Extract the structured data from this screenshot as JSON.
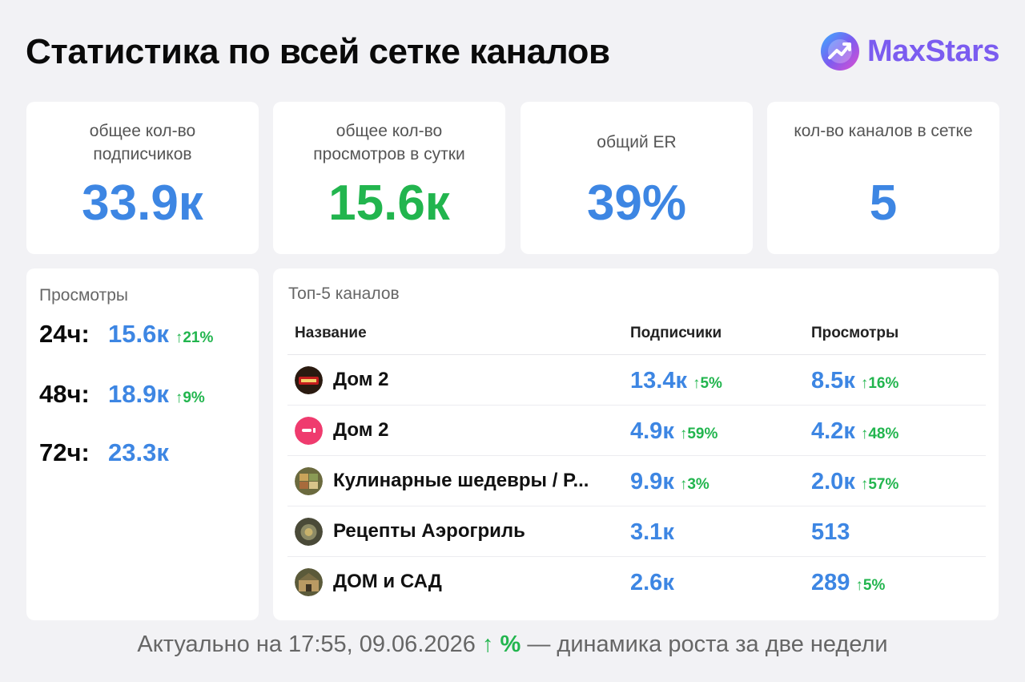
{
  "header": {
    "title": "Статистика по всей сетке каналов"
  },
  "brand": {
    "name": "MaxStars",
    "logo_icon": "trend-arrow-logo-icon",
    "color": "#7b5cf0"
  },
  "stats": [
    {
      "label": "общее кол-во подписчиков",
      "value": "33.9к",
      "color": "#3d86e3"
    },
    {
      "label": "общее кол-во просмотров в сутки",
      "value": "15.6к",
      "color": "#22b54e"
    },
    {
      "label": "общий ER",
      "value": "39%",
      "color": "#3d86e3"
    },
    {
      "label": "кол-во каналов в сетке",
      "value": "5",
      "color": "#3d86e3"
    }
  ],
  "views": {
    "title": "Просмотры",
    "rows": [
      {
        "period": "24ч:",
        "value": "15.6к",
        "delta": "↑21%"
      },
      {
        "period": "48ч:",
        "value": "18.9к",
        "delta": "↑9%"
      },
      {
        "period": "72ч:",
        "value": "23.3к",
        "delta": ""
      }
    ]
  },
  "top": {
    "title": "Топ-5 каналов",
    "columns": {
      "name": "Название",
      "subscribers": "Подписчики",
      "views": "Просмотры"
    },
    "rows": [
      {
        "name": "Дом 2",
        "avatar": "kupidon-avatar-icon",
        "subs": "13.4к",
        "subs_delta": "↑5%",
        "views": "8.5к",
        "views_delta": "↑16%"
      },
      {
        "name": "Дом 2",
        "avatar": "pink-circle-avatar-icon",
        "subs": "4.9к",
        "subs_delta": "↑59%",
        "views": "4.2к",
        "views_delta": "↑48%"
      },
      {
        "name": "Кулинарные шедевры / Р...",
        "avatar": "food-avatar-icon",
        "subs": "9.9к",
        "subs_delta": "↑3%",
        "views": "2.0к",
        "views_delta": "↑57%"
      },
      {
        "name": "Рецепты Аэрогриль",
        "avatar": "airgrill-avatar-icon",
        "subs": "3.1к",
        "subs_delta": "",
        "views": "513",
        "views_delta": ""
      },
      {
        "name": "ДОМ и САД",
        "avatar": "garden-avatar-icon",
        "subs": "2.6к",
        "subs_delta": "",
        "views": "289",
        "views_delta": "↑5%"
      }
    ]
  },
  "footer": {
    "prefix": "Актуально на 17:55, 09.06.2026",
    "arrow": "↑ %",
    "suffix": "— динамика роста за две недели"
  }
}
